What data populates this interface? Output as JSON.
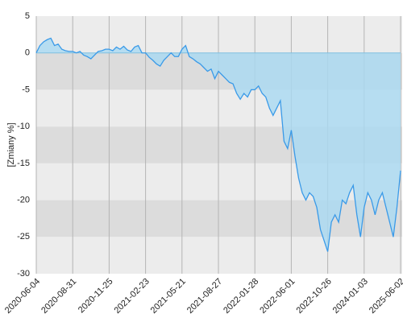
{
  "chart_data": {
    "type": "area",
    "y_label": "[Zmiany %]",
    "categories": [
      "2020-06-04",
      null,
      null,
      null,
      null,
      null,
      null,
      null,
      null,
      null,
      "2020-08-31",
      null,
      null,
      null,
      null,
      null,
      null,
      null,
      null,
      null,
      "2020-11-25",
      null,
      null,
      null,
      null,
      null,
      null,
      null,
      null,
      null,
      "2021-02-23",
      null,
      null,
      null,
      null,
      null,
      null,
      null,
      null,
      null,
      "2021-05-21",
      null,
      null,
      null,
      null,
      null,
      null,
      null,
      null,
      null,
      "2021-08-27",
      null,
      null,
      null,
      null,
      null,
      null,
      null,
      null,
      null,
      "2022-01-28",
      null,
      null,
      null,
      null,
      null,
      null,
      null,
      null,
      null,
      "2022-06-01",
      null,
      null,
      null,
      null,
      null,
      null,
      null,
      null,
      null,
      "2022-10-26",
      null,
      null,
      null,
      null,
      null,
      null,
      null,
      null,
      null,
      "2024-01-03",
      null,
      null,
      null,
      null,
      null,
      null,
      null,
      null,
      null,
      "2025-06-02"
    ],
    "values": [
      0,
      1.0,
      1.5,
      1.8,
      2.0,
      1.0,
      1.2,
      0.5,
      0.3,
      0.2,
      0.2,
      0,
      0.2,
      -0.3,
      -0.5,
      -0.8,
      -0.3,
      0.2,
      0.3,
      0.5,
      0.5,
      0.3,
      0.8,
      0.5,
      0.9,
      0.4,
      0.2,
      0.8,
      1.0,
      0,
      0,
      -0.6,
      -1.0,
      -1.5,
      -1.8,
      -1.0,
      -0.5,
      0,
      -0.5,
      -0.5,
      0.5,
      1.0,
      -0.5,
      -0.8,
      -1.2,
      -1.5,
      -2.0,
      -2.5,
      -2.2,
      -3.5,
      -2.5,
      -3.0,
      -3.5,
      -4.0,
      -4.2,
      -5.5,
      -6.3,
      -5.5,
      -6.0,
      -5.0,
      -5.0,
      -4.5,
      -5.5,
      -6.0,
      -7.5,
      -8.5,
      -7.5,
      -6.5,
      -12.0,
      -13.0,
      -10.5,
      -14.0,
      -17.0,
      -19.0,
      -20.0,
      -19.0,
      -19.5,
      -21.0,
      -24.0,
      -25.5,
      -27.0,
      -23.0,
      -22.0,
      -23.0,
      -20.0,
      -20.5,
      -19.0,
      -18.0,
      -22.0,
      -25.0,
      -21.0,
      -19.0,
      -20.0,
      -22.0,
      -20.0,
      -19.0,
      -21.0,
      -23.0,
      -25.0,
      -21.0,
      -16.0
    ],
    "color": "#3a9ae8",
    "fill": "#a9d9f2",
    "ylim": [
      -30,
      5
    ],
    "yticks": [
      -30,
      -25,
      -20,
      -15,
      -10,
      -5,
      0,
      5
    ],
    "grid": true
  }
}
